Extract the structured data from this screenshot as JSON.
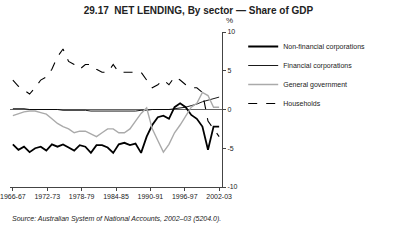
{
  "chart_data": {
    "type": "line",
    "title": "29.17  NET LENDING, By sector — Share of GDP",
    "source": "Source: Australian System of National Accounts, 2002–03 (5204.0).",
    "ylabel": "%",
    "x": [
      1966.5,
      1967.472973,
      1968.445946,
      1969.418919,
      1970.391892,
      1971.364865,
      1972.337838,
      1973.310811,
      1974.283784,
      1975.256757,
      1976.22973,
      1977.202703,
      1978.175676,
      1979.148649,
      1980.121622,
      1981.094595,
      1982.067568,
      1983.040541,
      1984.013514,
      1984.986486,
      1985.959459,
      1986.932432,
      1987.905405,
      1988.878378,
      1989.851351,
      1990.824324,
      1991.797297,
      1992.77027,
      1993.743243,
      1994.716216,
      1995.689189,
      1996.662162,
      1997.635135,
      1998.608108,
      1999.581081,
      2000.554054,
      2001.527027,
      2002.5
    ],
    "series": [
      {
        "name": "Non-financial corporations",
        "color": "#000000",
        "line_style": "solid",
        "values": [
          -4.5,
          -5.2,
          -4.8,
          -5.5,
          -5.0,
          -4.8,
          -5.3,
          -4.5,
          -4.8,
          -4.5,
          -4.9,
          -5.3,
          -4.6,
          -4.8,
          -5.6,
          -4.6,
          -4.6,
          -4.9,
          -5.6,
          -4.5,
          -4.3,
          -4.6,
          -4.4,
          -5.6,
          -3.5,
          -2.0,
          -1.0,
          -0.8,
          -1.2,
          0.3,
          0.8,
          0.3,
          -0.7,
          -1.2,
          -2.2,
          -5.2,
          -2.2,
          -2.2
        ]
      },
      {
        "name": "Financial corporations",
        "color": "#000000",
        "line_style": "solid",
        "values": [
          0.1,
          0.1,
          0.1,
          0.0,
          0.0,
          0.0,
          0.0,
          0.0,
          0.0,
          -0.1,
          -0.1,
          -0.1,
          -0.1,
          -0.1,
          -0.2,
          -0.2,
          -0.2,
          -0.2,
          -0.2,
          -0.2,
          -0.2,
          -0.2,
          -0.2,
          -0.1,
          -0.1,
          0.0,
          0.0,
          0.0,
          0.0,
          0.1,
          0.2,
          0.3,
          0.5,
          0.7,
          1.0,
          1.2,
          1.4,
          1.6
        ]
      },
      {
        "name": "General government",
        "color": "#aaaaaa",
        "line_style": "solid",
        "values": [
          -0.8,
          -0.5,
          -0.3,
          -0.2,
          -0.2,
          -0.4,
          -0.6,
          -1.2,
          -1.8,
          -2.2,
          -2.5,
          -3.0,
          -2.8,
          -2.8,
          -3.2,
          -3.5,
          -3.0,
          -2.5,
          -2.5,
          -3.0,
          -3.0,
          -2.5,
          -1.5,
          -0.5,
          0.2,
          -2.5,
          -4.0,
          -5.5,
          -4.5,
          -3.0,
          -2.0,
          -0.8,
          0.3,
          0.8,
          2.2,
          1.8,
          0.3,
          0.3
        ]
      },
      {
        "name": "Households",
        "color": "#000000",
        "line_style": "dashed",
        "values": [
          3.8,
          3.0,
          2.5,
          2.0,
          2.8,
          3.8,
          4.2,
          5.2,
          6.8,
          7.8,
          6.2,
          5.8,
          5.2,
          5.8,
          5.8,
          5.2,
          4.8,
          4.8,
          5.8,
          4.8,
          4.8,
          4.8,
          4.8,
          4.8,
          3.8,
          2.8,
          3.2,
          3.8,
          3.2,
          4.2,
          3.8,
          3.2,
          2.8,
          2.8,
          2.2,
          -1.5,
          -2.5,
          -3.5
        ]
      }
    ],
    "xlim": [
      1966,
      2003
    ],
    "xticks": [
      {
        "value": 1966.5,
        "label": "1966-67"
      },
      {
        "value": 1972.5,
        "label": "1972-73"
      },
      {
        "value": 1978.5,
        "label": "1978-79"
      },
      {
        "value": 1984.5,
        "label": "1984-85"
      },
      {
        "value": 1990.5,
        "label": "1990-91"
      },
      {
        "value": 1996.5,
        "label": "1996-97"
      },
      {
        "value": 2002.5,
        "label": "2002-03"
      }
    ],
    "ylim": [
      -10,
      10
    ],
    "yticks": [
      -10,
      -5,
      0,
      5,
      10
    ],
    "grid": false,
    "legend": "right"
  }
}
